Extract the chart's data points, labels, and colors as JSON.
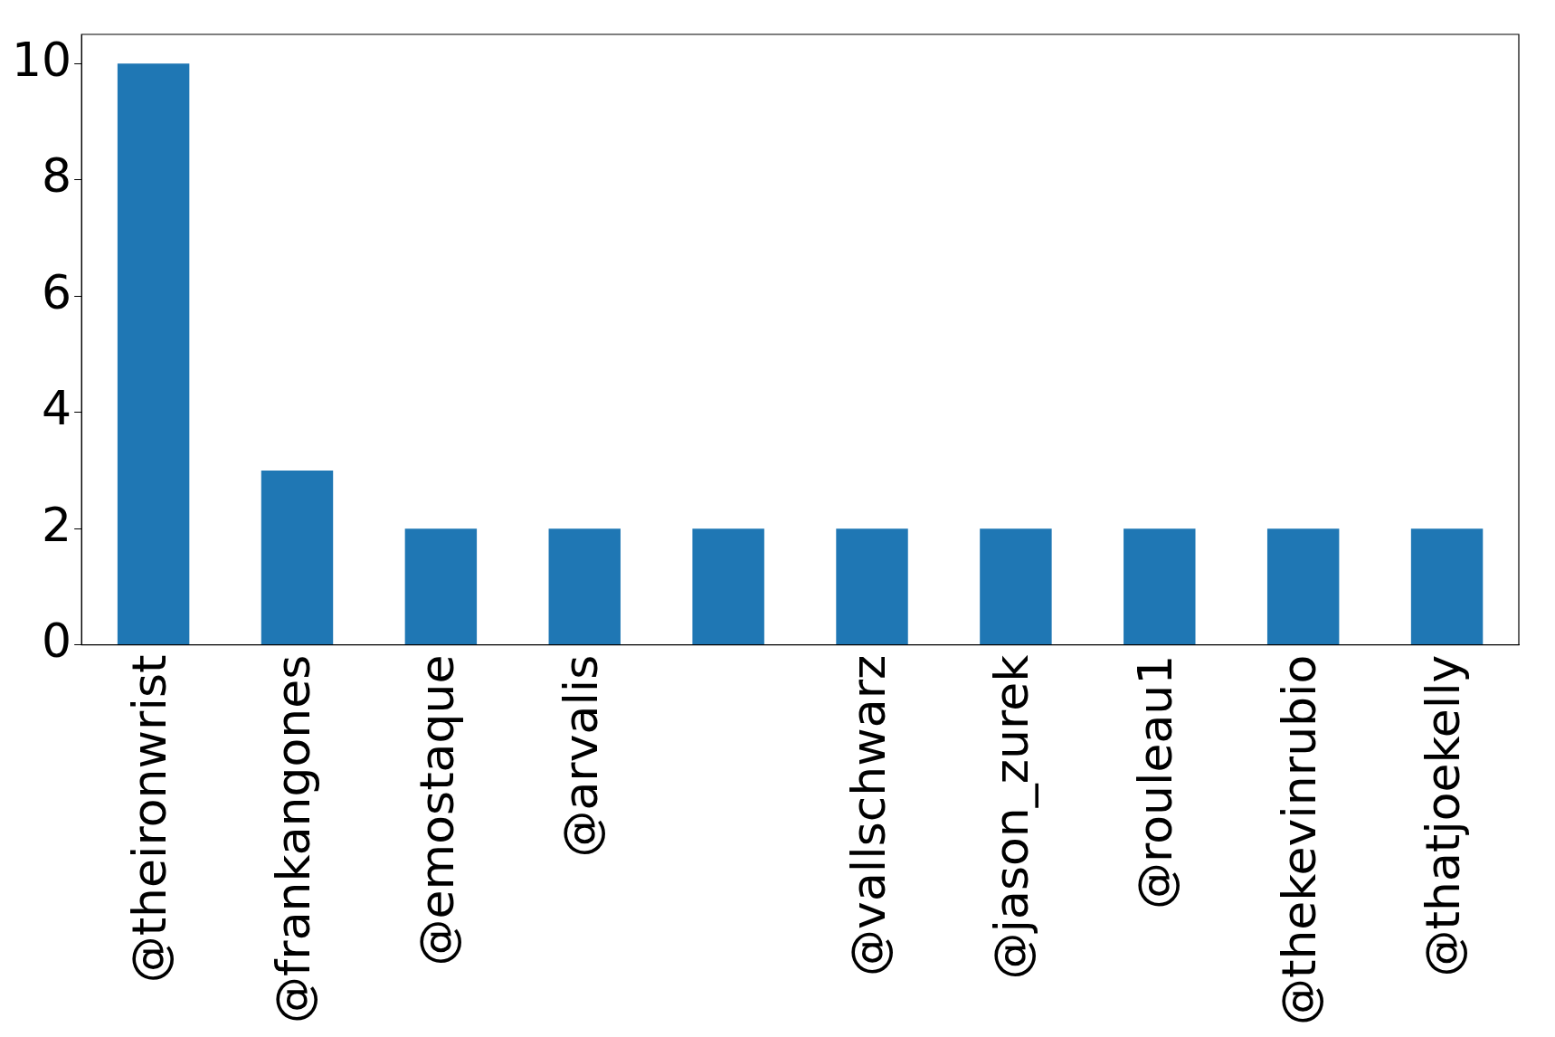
{
  "chart_data": {
    "type": "bar",
    "categories": [
      "@theironwrist",
      "@frankangones",
      "@emostaque",
      "@arvalis",
      null,
      "@vallschwarz",
      "@jason_zurek",
      "@rouleau1",
      "@thekevinrubio",
      "@thatjoekelly"
    ],
    "values": [
      10,
      3,
      2,
      2,
      2,
      2,
      2,
      2,
      2,
      2
    ],
    "color": "#1f77b4",
    "ylim": [
      0,
      10.5
    ],
    "yticks": [
      0,
      2,
      4,
      6,
      8,
      10
    ],
    "grid": false,
    "legend": false
  }
}
